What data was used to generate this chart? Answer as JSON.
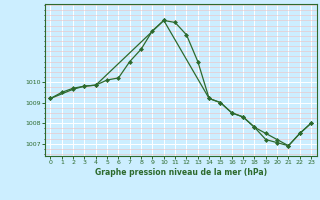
{
  "title": "Graphe pression niveau de la mer (hPa)",
  "bg_color": "#cceeff",
  "plot_bg_color": "#cceeff",
  "grid_color": "#ffffff",
  "line_color": "#2d6a2d",
  "marker_color": "#2d6a2d",
  "spine_color": "#2d6a2d",
  "xlim": [
    -0.5,
    23.5
  ],
  "ylim": [
    1006.4,
    1013.8
  ],
  "yticks": [
    1007,
    1008,
    1009,
    1010
  ],
  "xticks": [
    0,
    1,
    2,
    3,
    4,
    5,
    6,
    7,
    8,
    9,
    10,
    11,
    12,
    13,
    14,
    15,
    16,
    17,
    18,
    19,
    20,
    21,
    22,
    23
  ],
  "series1_x": [
    0,
    1,
    2,
    3,
    4,
    5,
    6,
    7,
    8,
    9,
    10,
    11,
    12,
    13,
    14,
    15,
    16,
    17,
    18,
    19,
    20,
    21,
    22,
    23
  ],
  "series1_y": [
    1009.2,
    1009.5,
    1009.7,
    1009.8,
    1009.85,
    1010.1,
    1010.2,
    1011.0,
    1011.6,
    1012.5,
    1013.0,
    1012.9,
    1012.3,
    1011.0,
    1009.2,
    1009.0,
    1008.5,
    1008.3,
    1007.8,
    1007.2,
    1007.05,
    1006.9,
    1007.5,
    1008.0
  ],
  "series2_x": [
    0,
    2,
    3,
    4,
    10,
    14,
    15,
    16,
    17,
    18,
    19,
    20,
    21,
    22,
    23
  ],
  "series2_y": [
    1009.2,
    1009.65,
    1009.8,
    1009.85,
    1013.0,
    1009.2,
    1009.0,
    1008.5,
    1008.3,
    1007.8,
    1007.5,
    1007.2,
    1006.9,
    1007.5,
    1008.0
  ]
}
